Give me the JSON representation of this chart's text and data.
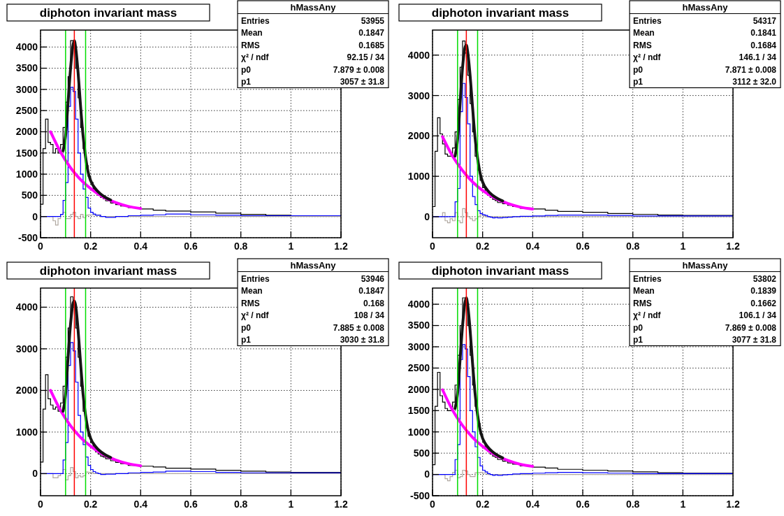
{
  "chart_data": [
    {
      "type": "histogram",
      "title": "diphoton invariant mass",
      "xlim": [
        0,
        1.2
      ],
      "xticks": [
        0,
        0.2,
        0.4,
        0.6,
        0.8,
        1,
        1.2
      ],
      "ylim": [
        -500,
        4400
      ],
      "yticks": [
        -500,
        0,
        500,
        1000,
        1500,
        2000,
        2500,
        3000,
        3500,
        4000
      ],
      "grid": true,
      "bins": [
        0,
        0.01,
        0.02,
        0.03,
        0.04,
        0.05,
        0.06,
        0.07,
        0.08,
        0.09,
        0.1,
        0.11,
        0.12,
        0.13,
        0.14,
        0.15,
        0.16,
        0.17,
        0.18,
        0.19,
        0.2,
        0.21,
        0.22,
        0.23,
        0.24,
        0.25,
        0.26,
        0.28,
        0.3,
        0.32,
        0.35,
        0.4,
        0.45,
        0.5,
        0.6,
        0.7,
        0.8,
        0.9,
        1.0,
        1.2
      ],
      "series": [
        {
          "type": "histogram",
          "color": "#000000",
          "values": [
            290,
            1600,
            2300,
            1750,
            1700,
            1500,
            1600,
            1500,
            1700,
            2100,
            2700,
            3300,
            4150,
            4000,
            3500,
            2800,
            2100,
            1600,
            1200,
            950,
            800,
            650,
            560,
            500,
            450,
            420,
            370,
            320,
            280,
            250,
            210,
            180,
            150,
            130,
            110,
            80,
            50,
            30,
            20
          ]
        },
        {
          "type": "histogram",
          "color": "#b0a8a0",
          "values": [
            0,
            0,
            0,
            0,
            0,
            -100,
            -200,
            -50,
            50,
            100,
            -50,
            -50,
            50,
            100,
            0,
            -50,
            50,
            -30,
            30,
            40,
            40,
            40,
            40,
            40,
            0,
            0,
            0,
            0,
            0,
            0,
            0,
            0,
            0,
            0,
            0,
            0,
            0,
            0,
            0
          ]
        },
        {
          "type": "histogram",
          "color": "#0000ff",
          "values": [
            0,
            0,
            0,
            0,
            0,
            0,
            0,
            0,
            50,
            380,
            800,
            2600,
            3050,
            2950,
            2300,
            1500,
            1000,
            650,
            450,
            200,
            100,
            60,
            30,
            30,
            0,
            0,
            -20,
            -20,
            0,
            0,
            20,
            30,
            40,
            60,
            40,
            30,
            20,
            20,
            20
          ]
        },
        {
          "type": "line",
          "color": "#ff00ff",
          "x": [
            0.04,
            0.08,
            0.12,
            0.16,
            0.2,
            0.25,
            0.3,
            0.35,
            0.4
          ],
          "values": [
            2000,
            1520,
            1150,
            870,
            660,
            460,
            330,
            240,
            190
          ]
        },
        {
          "type": "line",
          "color": "#151515",
          "x": [
            0.09,
            0.1,
            0.11,
            0.12,
            0.13,
            0.135,
            0.14,
            0.15,
            0.16,
            0.17,
            0.18,
            0.19,
            0.2,
            0.22,
            0.24,
            0.26,
            0.28
          ],
          "values": [
            1550,
            1900,
            2700,
            3500,
            4050,
            4150,
            4000,
            3400,
            2600,
            1900,
            1400,
            1050,
            850,
            650,
            530,
            450,
            390
          ]
        }
      ],
      "ref_lines": [
        {
          "axis": "x",
          "value": 0.1,
          "color": "#00dd00"
        },
        {
          "axis": "x",
          "value": 0.18,
          "color": "#00dd00"
        },
        {
          "axis": "x",
          "value": 0.135,
          "color": "#ff0000"
        }
      ],
      "annotations": [
        "hMassAny",
        "Entries",
        "53955",
        "Mean",
        "0.1847",
        "RMS",
        "0.1685",
        "χ² / ndf",
        "92.15 / 34",
        "p0",
        "7.879 ± 0.008",
        "p1",
        "3057 ± 31.8"
      ]
    },
    {
      "type": "histogram",
      "title": "diphoton invariant mass",
      "xlim": [
        0,
        1.2
      ],
      "xticks": [
        0,
        0.2,
        0.4,
        0.6,
        0.8,
        1,
        1.2
      ],
      "ylim": [
        -520,
        4620
      ],
      "yticks": [
        0,
        1000,
        2000,
        3000,
        4000
      ],
      "grid": true,
      "bins": [
        0,
        0.01,
        0.02,
        0.03,
        0.04,
        0.05,
        0.06,
        0.07,
        0.08,
        0.09,
        0.1,
        0.11,
        0.12,
        0.13,
        0.14,
        0.15,
        0.16,
        0.17,
        0.18,
        0.19,
        0.2,
        0.21,
        0.22,
        0.23,
        0.24,
        0.25,
        0.26,
        0.28,
        0.3,
        0.32,
        0.35,
        0.4,
        0.45,
        0.5,
        0.6,
        0.7,
        0.8,
        0.9,
        1.0,
        1.2
      ],
      "series": [
        {
          "type": "histogram",
          "color": "#000000",
          "values": [
            250,
            1620,
            2450,
            2050,
            1800,
            1550,
            1500,
            1500,
            1700,
            2100,
            2900,
            3700,
            4350,
            4050,
            3500,
            2800,
            2100,
            1500,
            1150,
            900,
            720,
            600,
            530,
            480,
            430,
            400,
            350,
            320,
            280,
            250,
            210,
            190,
            160,
            130,
            110,
            80,
            60,
            40,
            30
          ]
        },
        {
          "type": "histogram",
          "color": "#b0a8a0",
          "values": [
            0,
            0,
            0,
            0,
            100,
            -100,
            -150,
            -50,
            -100,
            100,
            -100,
            -150,
            200,
            100,
            0,
            -50,
            -100,
            -50,
            0,
            50,
            30,
            0,
            0,
            0,
            0,
            0,
            0,
            0,
            0,
            0,
            0,
            0,
            0,
            0,
            0,
            0,
            0,
            0,
            0
          ]
        },
        {
          "type": "histogram",
          "color": "#0000ff",
          "values": [
            0,
            0,
            0,
            0,
            0,
            0,
            0,
            0,
            0,
            370,
            700,
            2600,
            3300,
            2950,
            2300,
            1000,
            500,
            300,
            150,
            80,
            50,
            30,
            0,
            -10,
            -30,
            -20,
            -30,
            -20,
            -10,
            0,
            10,
            20,
            30,
            40,
            40,
            30,
            20,
            20,
            20
          ]
        },
        {
          "type": "line",
          "color": "#ff00ff",
          "x": [
            0.04,
            0.08,
            0.12,
            0.16,
            0.2,
            0.25,
            0.3,
            0.35,
            0.4
          ],
          "values": [
            1980,
            1500,
            1140,
            860,
            650,
            460,
            330,
            240,
            190
          ]
        },
        {
          "type": "line",
          "color": "#151515",
          "x": [
            0.09,
            0.1,
            0.11,
            0.12,
            0.13,
            0.135,
            0.14,
            0.15,
            0.16,
            0.17,
            0.18,
            0.19,
            0.2,
            0.22,
            0.24,
            0.26,
            0.28
          ],
          "values": [
            1500,
            1900,
            2800,
            3700,
            4200,
            4250,
            4100,
            3500,
            2700,
            1950,
            1450,
            1080,
            860,
            650,
            530,
            450,
            390
          ]
        }
      ],
      "ref_lines": [
        {
          "axis": "x",
          "value": 0.1,
          "color": "#00dd00"
        },
        {
          "axis": "x",
          "value": 0.18,
          "color": "#00dd00"
        },
        {
          "axis": "x",
          "value": 0.135,
          "color": "#ff0000"
        }
      ],
      "annotations": [
        "hMassAny",
        "Entries",
        "54317",
        "Mean",
        "0.1841",
        "RMS",
        "0.1684",
        "χ² / ndf",
        "146.1 / 34",
        "p0",
        "7.871 ± 0.008",
        "p1",
        "3112 ± 32.0"
      ]
    },
    {
      "type": "histogram",
      "title": "diphoton invariant mass",
      "xlim": [
        0,
        1.2
      ],
      "xticks": [
        0,
        0.2,
        0.4,
        0.6,
        0.8,
        1,
        1.2
      ],
      "ylim": [
        -530,
        4460
      ],
      "yticks": [
        0,
        1000,
        2000,
        3000,
        4000
      ],
      "grid": true,
      "bins": [
        0,
        0.01,
        0.02,
        0.03,
        0.04,
        0.05,
        0.06,
        0.07,
        0.08,
        0.09,
        0.1,
        0.11,
        0.12,
        0.13,
        0.14,
        0.15,
        0.16,
        0.17,
        0.18,
        0.19,
        0.2,
        0.21,
        0.22,
        0.23,
        0.24,
        0.25,
        0.26,
        0.28,
        0.3,
        0.32,
        0.35,
        0.4,
        0.45,
        0.5,
        0.6,
        0.7,
        0.8,
        0.9,
        1.0,
        1.2
      ],
      "series": [
        {
          "type": "histogram",
          "color": "#000000",
          "values": [
            280,
            1550,
            2380,
            1800,
            1650,
            1550,
            1600,
            1500,
            1700,
            2100,
            2800,
            3500,
            4250,
            4000,
            3500,
            2800,
            2100,
            1500,
            1100,
            900,
            750,
            620,
            520,
            470,
            420,
            400,
            360,
            310,
            270,
            240,
            200,
            180,
            160,
            130,
            110,
            80,
            60,
            40,
            30
          ]
        },
        {
          "type": "histogram",
          "color": "#b0a8a0",
          "values": [
            0,
            0,
            0,
            0,
            0,
            -100,
            -100,
            -50,
            0,
            100,
            -150,
            -50,
            150,
            50,
            -100,
            -50,
            -80,
            -50,
            40,
            30,
            30,
            0,
            0,
            0,
            0,
            0,
            0,
            0,
            0,
            0,
            0,
            0,
            0,
            0,
            0,
            0,
            0,
            0,
            0
          ]
        },
        {
          "type": "histogram",
          "color": "#0000ff",
          "values": [
            0,
            0,
            0,
            0,
            0,
            0,
            0,
            0,
            0,
            330,
            750,
            2600,
            3150,
            2950,
            2200,
            1400,
            1000,
            700,
            400,
            200,
            100,
            50,
            20,
            0,
            -20,
            -20,
            -10,
            -10,
            0,
            0,
            20,
            30,
            40,
            60,
            50,
            30,
            20,
            20,
            20
          ]
        },
        {
          "type": "line",
          "color": "#ff00ff",
          "x": [
            0.04,
            0.08,
            0.12,
            0.16,
            0.2,
            0.25,
            0.3,
            0.35,
            0.4
          ],
          "values": [
            2000,
            1520,
            1150,
            870,
            660,
            460,
            330,
            240,
            190
          ]
        },
        {
          "type": "line",
          "color": "#151515",
          "x": [
            0.09,
            0.1,
            0.11,
            0.12,
            0.13,
            0.135,
            0.14,
            0.15,
            0.16,
            0.17,
            0.18,
            0.19,
            0.2,
            0.22,
            0.24,
            0.26,
            0.28
          ],
          "values": [
            1500,
            1900,
            2800,
            3600,
            4100,
            4150,
            4050,
            3450,
            2650,
            1900,
            1400,
            1050,
            850,
            650,
            530,
            450,
            390
          ]
        }
      ],
      "ref_lines": [
        {
          "axis": "x",
          "value": 0.1,
          "color": "#00dd00"
        },
        {
          "axis": "x",
          "value": 0.18,
          "color": "#00dd00"
        },
        {
          "axis": "x",
          "value": 0.135,
          "color": "#ff0000"
        }
      ],
      "annotations": [
        "hMassAny",
        "Entries",
        "53946",
        "Mean",
        "0.1847",
        "RMS",
        "0.168",
        "χ² / ndf",
        "108 / 34",
        "p0",
        "7.885 ± 0.008",
        "p1",
        "3030 ± 31.8"
      ]
    },
    {
      "type": "histogram",
      "title": "diphoton invariant mass",
      "xlim": [
        0,
        1.2
      ],
      "xticks": [
        0,
        0.2,
        0.4,
        0.6,
        0.8,
        1,
        1.2
      ],
      "ylim": [
        -500,
        4380
      ],
      "yticks": [
        -500,
        0,
        500,
        1000,
        1500,
        2000,
        2500,
        3000,
        3500,
        4000
      ],
      "grid": true,
      "bins": [
        0,
        0.01,
        0.02,
        0.03,
        0.04,
        0.05,
        0.06,
        0.07,
        0.08,
        0.09,
        0.1,
        0.11,
        0.12,
        0.13,
        0.14,
        0.15,
        0.16,
        0.17,
        0.18,
        0.19,
        0.2,
        0.21,
        0.22,
        0.23,
        0.24,
        0.25,
        0.26,
        0.28,
        0.3,
        0.32,
        0.35,
        0.4,
        0.45,
        0.5,
        0.6,
        0.7,
        0.8,
        0.9,
        1.0,
        1.2
      ],
      "series": [
        {
          "type": "histogram",
          "color": "#000000",
          "values": [
            230,
            1600,
            2400,
            1850,
            1700,
            1550,
            1500,
            1500,
            1700,
            2100,
            2800,
            3500,
            4150,
            4000,
            3500,
            2800,
            2100,
            1600,
            1200,
            950,
            780,
            640,
            540,
            480,
            430,
            400,
            350,
            310,
            270,
            240,
            200,
            170,
            150,
            120,
            100,
            80,
            60,
            40,
            30
          ]
        },
        {
          "type": "histogram",
          "color": "#b0a8a0",
          "values": [
            0,
            0,
            0,
            0,
            0,
            -100,
            -150,
            -50,
            50,
            100,
            -80,
            -50,
            100,
            80,
            0,
            -50,
            -50,
            40,
            40,
            50,
            30,
            30,
            0,
            0,
            0,
            0,
            0,
            0,
            0,
            0,
            0,
            0,
            0,
            0,
            0,
            0,
            0,
            0,
            0
          ]
        },
        {
          "type": "histogram",
          "color": "#0000ff",
          "values": [
            0,
            0,
            0,
            0,
            0,
            0,
            0,
            0,
            0,
            350,
            700,
            2700,
            3050,
            2950,
            2300,
            1500,
            1000,
            650,
            400,
            200,
            100,
            60,
            20,
            0,
            -20,
            -10,
            -20,
            -10,
            0,
            10,
            20,
            30,
            40,
            50,
            40,
            30,
            20,
            20,
            20
          ]
        },
        {
          "type": "line",
          "color": "#ff00ff",
          "x": [
            0.04,
            0.08,
            0.12,
            0.16,
            0.2,
            0.25,
            0.3,
            0.35,
            0.4
          ],
          "values": [
            1990,
            1510,
            1150,
            870,
            660,
            460,
            330,
            240,
            190
          ]
        },
        {
          "type": "line",
          "color": "#151515",
          "x": [
            0.09,
            0.1,
            0.11,
            0.12,
            0.13,
            0.135,
            0.14,
            0.15,
            0.16,
            0.17,
            0.18,
            0.19,
            0.2,
            0.22,
            0.24,
            0.26,
            0.28
          ],
          "values": [
            1550,
            1900,
            2700,
            3500,
            4050,
            4150,
            4000,
            3400,
            2600,
            1900,
            1400,
            1050,
            850,
            650,
            530,
            450,
            390
          ]
        }
      ],
      "ref_lines": [
        {
          "axis": "x",
          "value": 0.1,
          "color": "#00dd00"
        },
        {
          "axis": "x",
          "value": 0.18,
          "color": "#00dd00"
        },
        {
          "axis": "x",
          "value": 0.135,
          "color": "#ff0000"
        }
      ],
      "annotations": [
        "hMassAny",
        "Entries",
        "53802",
        "Mean",
        "0.1839",
        "RMS",
        "0.1662",
        "χ² / ndf",
        "106.1 / 34",
        "p0",
        "7.869 ± 0.008",
        "p1",
        "3077 ± 31.8"
      ]
    }
  ]
}
